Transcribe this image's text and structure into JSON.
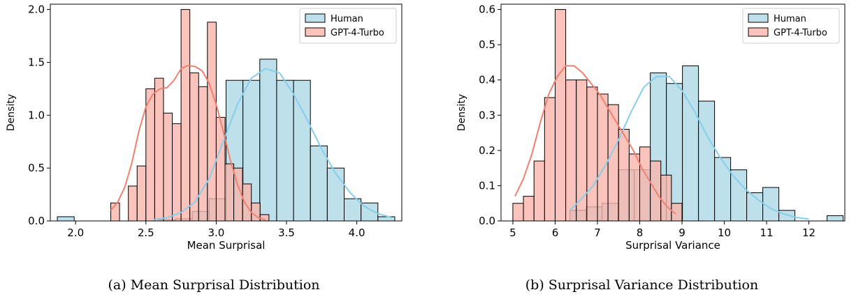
{
  "captions": {
    "a": "(a) Mean Surprisal Distribution",
    "b": "(b) Surprisal Variance Distribution"
  },
  "colors": {
    "human_fill": "#add8e6",
    "human_line": "#87ceeb",
    "gpt_fill": "#f9b4ab",
    "gpt_line": "#f08070"
  },
  "chart_data": [
    {
      "type": "bar",
      "subtype": "histogram-with-kde",
      "xlabel": "Mean Surprisal",
      "ylabel": "Density",
      "xlim": [
        1.82,
        4.32
      ],
      "ylim": [
        0,
        2.05
      ],
      "xticks": [
        2.0,
        2.5,
        3.0,
        3.5,
        4.0
      ],
      "xtick_labels": [
        "2.0",
        "2.5",
        "3.0",
        "3.5",
        "4.0"
      ],
      "yticks": [
        0.0,
        0.5,
        1.0,
        1.5,
        2.0
      ],
      "ytick_labels": [
        "0.0",
        "0.5",
        "1.0",
        "1.5",
        "2.0"
      ],
      "grid": false,
      "legend_position": "top-right",
      "series": [
        {
          "name": "Human",
          "bin_width": 0.12,
          "bins": [
            [
              1.87,
              0.04
            ],
            [
              1.99,
              0
            ],
            [
              2.11,
              0
            ],
            [
              2.23,
              0
            ],
            [
              2.35,
              0
            ],
            [
              2.47,
              0
            ],
            [
              2.59,
              0.01
            ],
            [
              2.71,
              0.02
            ],
            [
              2.83,
              0.09
            ],
            [
              2.95,
              0.21
            ],
            [
              3.07,
              1.33
            ],
            [
              3.19,
              1.33
            ],
            [
              3.31,
              1.53
            ],
            [
              3.43,
              1.33
            ],
            [
              3.55,
              1.33
            ],
            [
              3.67,
              0.71
            ],
            [
              3.79,
              0.5
            ],
            [
              3.91,
              0.21
            ],
            [
              4.03,
              0.17
            ],
            [
              4.15,
              0.04
            ]
          ],
          "kde": [
            [
              2.55,
              0.01
            ],
            [
              2.65,
              0.03
            ],
            [
              2.75,
              0.08
            ],
            [
              2.85,
              0.18
            ],
            [
              2.95,
              0.4
            ],
            [
              3.05,
              0.75
            ],
            [
              3.15,
              1.1
            ],
            [
              3.25,
              1.35
            ],
            [
              3.35,
              1.44
            ],
            [
              3.45,
              1.4
            ],
            [
              3.55,
              1.2
            ],
            [
              3.65,
              0.95
            ],
            [
              3.75,
              0.68
            ],
            [
              3.85,
              0.45
            ],
            [
              3.95,
              0.27
            ],
            [
              4.05,
              0.14
            ],
            [
              4.15,
              0.07
            ],
            [
              4.25,
              0.03
            ]
          ]
        },
        {
          "name": "GPT-4-Turbo",
          "bin_width": 0.0625,
          "bins": [
            [
              2.25,
              0.17
            ],
            [
              2.3125,
              0.0
            ],
            [
              2.375,
              0.33
            ],
            [
              2.4375,
              0.52
            ],
            [
              2.5,
              1.25
            ],
            [
              2.5625,
              1.35
            ],
            [
              2.625,
              1.02
            ],
            [
              2.6875,
              0.92
            ],
            [
              2.75,
              2.0
            ],
            [
              2.8125,
              1.4
            ],
            [
              2.875,
              1.27
            ],
            [
              2.9375,
              1.88
            ],
            [
              3.0,
              0.98
            ],
            [
              3.0625,
              0.54
            ],
            [
              3.125,
              0.5
            ],
            [
              3.1875,
              0.35
            ],
            [
              3.25,
              0.17
            ],
            [
              3.3125,
              0.06
            ]
          ],
          "kde": [
            [
              2.25,
              0.1
            ],
            [
              2.3,
              0.18
            ],
            [
              2.35,
              0.32
            ],
            [
              2.4,
              0.55
            ],
            [
              2.45,
              0.85
            ],
            [
              2.5,
              1.08
            ],
            [
              2.55,
              1.2
            ],
            [
              2.6,
              1.25
            ],
            [
              2.65,
              1.26
            ],
            [
              2.7,
              1.33
            ],
            [
              2.75,
              1.44
            ],
            [
              2.8,
              1.47
            ],
            [
              2.85,
              1.46
            ],
            [
              2.9,
              1.42
            ],
            [
              2.95,
              1.3
            ],
            [
              3.0,
              1.1
            ],
            [
              3.05,
              0.85
            ],
            [
              3.1,
              0.58
            ],
            [
              3.15,
              0.35
            ],
            [
              3.2,
              0.18
            ],
            [
              3.25,
              0.08
            ],
            [
              3.3,
              0.03
            ],
            [
              3.35,
              0.01
            ]
          ]
        }
      ]
    },
    {
      "type": "bar",
      "subtype": "histogram-with-kde",
      "xlabel": "Surprisal Variance",
      "ylabel": "Density",
      "xlim": [
        4.72,
        12.85
      ],
      "ylim": [
        0,
        0.615
      ],
      "xticks": [
        5,
        6,
        7,
        8,
        9,
        10,
        11,
        12
      ],
      "xtick_labels": [
        "5",
        "6",
        "7",
        "8",
        "9",
        "10",
        "11",
        "12"
      ],
      "yticks": [
        0.0,
        0.1,
        0.2,
        0.3,
        0.4,
        0.5,
        0.6
      ],
      "ytick_labels": [
        "0.0",
        "0.1",
        "0.2",
        "0.3",
        "0.4",
        "0.5",
        "0.6"
      ],
      "grid": false,
      "legend_position": "top-right",
      "series": [
        {
          "name": "Human",
          "bin_width": 0.38,
          "bins": [
            [
              6.35,
              0.03
            ],
            [
              6.73,
              0.04
            ],
            [
              7.11,
              0.05
            ],
            [
              7.49,
              0.145
            ],
            [
              7.87,
              0.145
            ],
            [
              8.25,
              0.42
            ],
            [
              8.63,
              0.39
            ],
            [
              9.01,
              0.44
            ],
            [
              9.39,
              0.34
            ],
            [
              9.77,
              0.18
            ],
            [
              10.15,
              0.145
            ],
            [
              10.53,
              0.08
            ],
            [
              10.91,
              0.095
            ],
            [
              11.29,
              0.03
            ],
            [
              11.67,
              0
            ],
            [
              12.05,
              0
            ],
            [
              12.43,
              0.015
            ]
          ],
          "kde": [
            [
              6.35,
              0.03
            ],
            [
              6.6,
              0.06
            ],
            [
              6.9,
              0.1
            ],
            [
              7.2,
              0.16
            ],
            [
              7.5,
              0.23
            ],
            [
              7.8,
              0.31
            ],
            [
              8.1,
              0.38
            ],
            [
              8.4,
              0.41
            ],
            [
              8.7,
              0.41
            ],
            [
              9.0,
              0.37
            ],
            [
              9.3,
              0.31
            ],
            [
              9.6,
              0.24
            ],
            [
              9.9,
              0.18
            ],
            [
              10.2,
              0.13
            ],
            [
              10.5,
              0.09
            ],
            [
              10.8,
              0.06
            ],
            [
              11.1,
              0.035
            ],
            [
              11.4,
              0.02
            ],
            [
              11.7,
              0.01
            ],
            [
              12.0,
              0.005
            ]
          ]
        },
        {
          "name": "GPT-4-Turbo",
          "bin_width": 0.25,
          "bins": [
            [
              5.0,
              0.05
            ],
            [
              5.25,
              0.07
            ],
            [
              5.5,
              0.17
            ],
            [
              5.75,
              0.35
            ],
            [
              6.0,
              0.6
            ],
            [
              6.25,
              0.4
            ],
            [
              6.5,
              0.4
            ],
            [
              6.75,
              0.38
            ],
            [
              7.0,
              0.36
            ],
            [
              7.25,
              0.33
            ],
            [
              7.5,
              0.26
            ],
            [
              7.75,
              0.19
            ],
            [
              8.0,
              0.21
            ],
            [
              8.25,
              0.17
            ],
            [
              8.5,
              0.13
            ],
            [
              8.75,
              0.05
            ]
          ],
          "kde": [
            [
              5.05,
              0.07
            ],
            [
              5.25,
              0.12
            ],
            [
              5.45,
              0.19
            ],
            [
              5.65,
              0.28
            ],
            [
              5.85,
              0.36
            ],
            [
              6.05,
              0.41
            ],
            [
              6.25,
              0.44
            ],
            [
              6.45,
              0.44
            ],
            [
              6.65,
              0.42
            ],
            [
              6.85,
              0.39
            ],
            [
              7.05,
              0.36
            ],
            [
              7.25,
              0.32
            ],
            [
              7.45,
              0.28
            ],
            [
              7.65,
              0.24
            ],
            [
              7.85,
              0.2
            ],
            [
              8.05,
              0.15
            ],
            [
              8.25,
              0.11
            ],
            [
              8.45,
              0.07
            ],
            [
              8.65,
              0.04
            ],
            [
              8.85,
              0.02
            ]
          ]
        }
      ]
    }
  ]
}
